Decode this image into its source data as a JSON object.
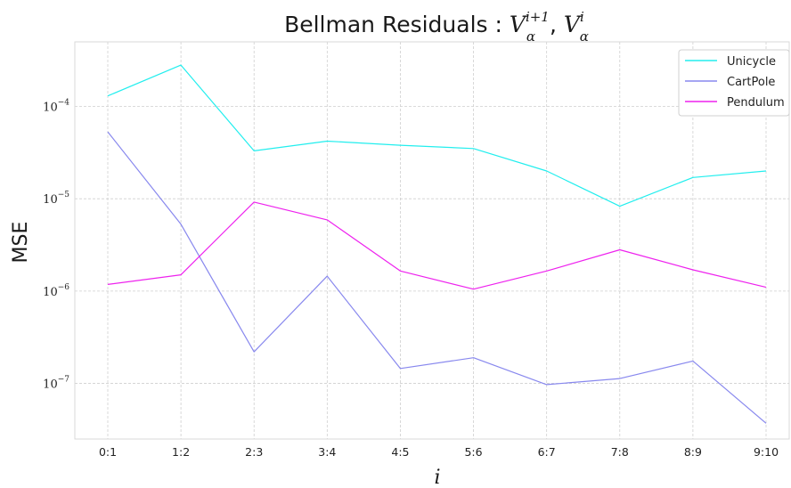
{
  "chart_data": {
    "type": "line",
    "title": {
      "prefix": "Bellman Residuals : ",
      "term1_base": "V",
      "term1_sup": "i+1",
      "term1_sub": "α",
      "separator": ", ",
      "term2_base": "V",
      "term2_sup": "i",
      "term2_sub": "α"
    },
    "xlabel": "i",
    "ylabel": "MSE",
    "yscale": "log",
    "ylim": [
      2.5e-08,
      0.0005
    ],
    "grid": true,
    "legend_position": "top-right",
    "categories": [
      "0:1",
      "1:2",
      "2:3",
      "3:4",
      "4:5",
      "5:6",
      "6:7",
      "7:8",
      "8:9",
      "9:10"
    ],
    "y_ticks": [
      {
        "value": 0.0001,
        "base": "10",
        "exp": "−4"
      },
      {
        "value": 1e-05,
        "base": "10",
        "exp": "−5"
      },
      {
        "value": 1e-06,
        "base": "10",
        "exp": "−6"
      },
      {
        "value": 1e-07,
        "base": "10",
        "exp": "−7"
      }
    ],
    "series": [
      {
        "name": "Unicycle",
        "color": "#22eeee",
        "values": [
          0.00013,
          0.00028,
          3.3e-05,
          4.2e-05,
          3.8e-05,
          3.5e-05,
          2e-05,
          8.3e-06,
          1.7e-05,
          2e-05
        ]
      },
      {
        "name": "CartPole",
        "color": "#8888ee",
        "values": [
          5.3e-05,
          5.3e-06,
          2.2e-07,
          1.45e-06,
          1.45e-07,
          1.9e-07,
          9.7e-08,
          1.13e-07,
          1.75e-07,
          3.7e-08
        ]
      },
      {
        "name": "Pendulum",
        "color": "#ee22ee",
        "values": [
          1.18e-06,
          1.5e-06,
          9.2e-06,
          5.9e-06,
          1.65e-06,
          1.05e-06,
          1.65e-06,
          2.8e-06,
          1.7e-06,
          1.1e-06
        ]
      }
    ]
  }
}
